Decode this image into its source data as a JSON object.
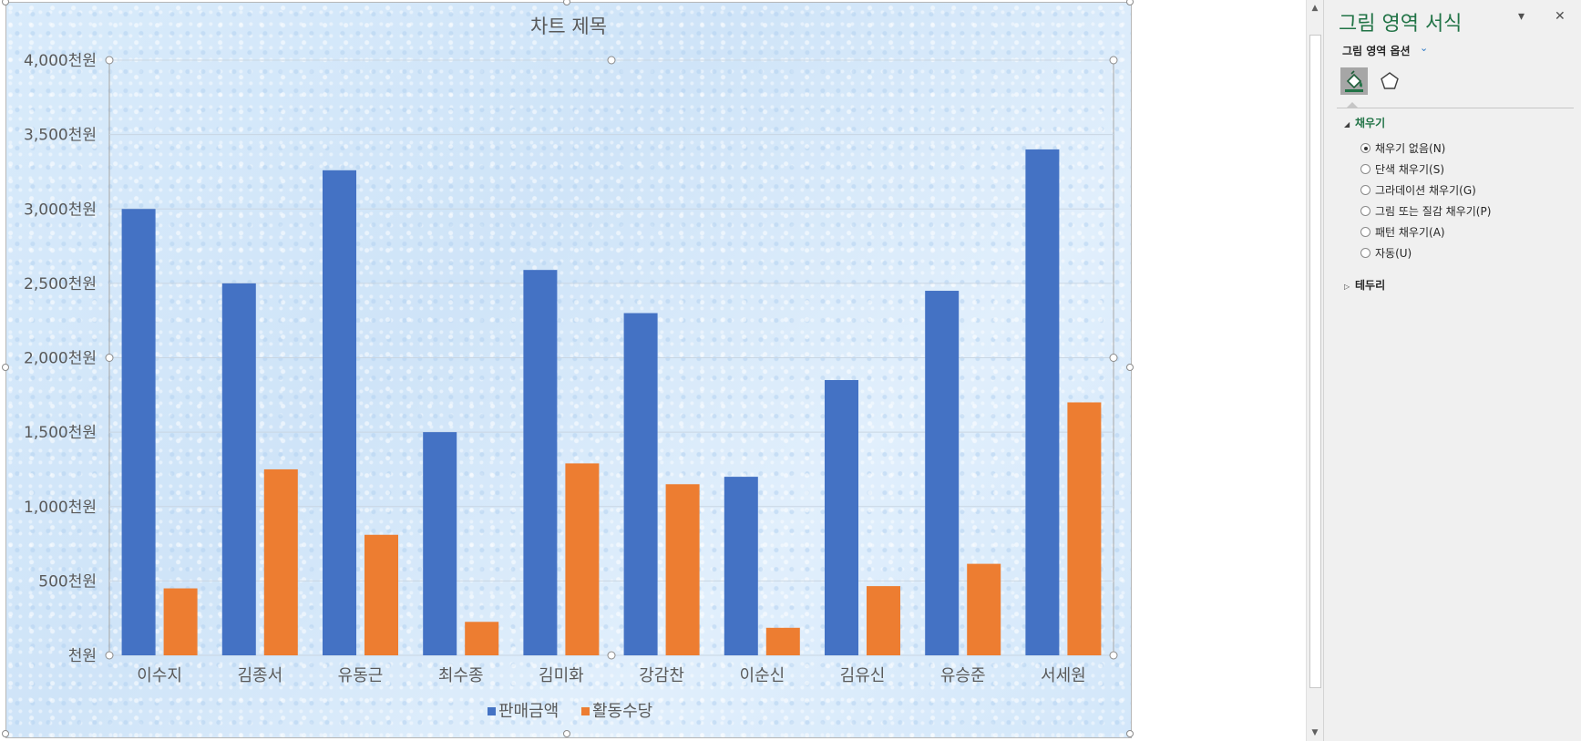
{
  "chart_data": {
    "type": "bar",
    "title": "차트 제목",
    "categories": [
      "이수지",
      "김종서",
      "유동근",
      "최수종",
      "김미화",
      "강감찬",
      "이순신",
      "김유신",
      "유승준",
      "서세원"
    ],
    "series": [
      {
        "name": "판매금액",
        "color": "#4472c4",
        "values": [
          3000,
          2500,
          3260,
          1500,
          2590,
          2300,
          1200,
          1850,
          2450,
          3400
        ]
      },
      {
        "name": "활동수당",
        "color": "#ed7d31",
        "values": [
          450,
          1250,
          810,
          225,
          1290,
          1150,
          185,
          465,
          615,
          1700
        ]
      }
    ],
    "ylim": [
      0,
      4000
    ],
    "yticks": [
      0,
      500,
      1000,
      1500,
      2000,
      2500,
      3000,
      3500,
      4000
    ],
    "ytick_labels": [
      "천원",
      "500천원",
      "1,000천원",
      "1,500천원",
      "2,000천원",
      "2,500천원",
      "3,000천원",
      "3,500천원",
      "4,000천원"
    ],
    "grid": true,
    "legend": "bottom"
  },
  "scrollbar": {
    "up_icon": "scroll-up-arrow",
    "down_icon": "scroll-down-arrow"
  },
  "pane": {
    "title": "그림 영역 서식",
    "options_label": "그림 영역 옵션",
    "tabs": [
      "fill-line-icon",
      "shape-effects-icon"
    ],
    "fill_section": "채우기",
    "fill_options": [
      {
        "label": "채우기 없음(N)",
        "selected": true
      },
      {
        "label": "단색 채우기(S)",
        "selected": false
      },
      {
        "label": "그라데이션 채우기(G)",
        "selected": false
      },
      {
        "label": "그림 또는 질감 채우기(P)",
        "selected": false
      },
      {
        "label": "패턴 채우기(A)",
        "selected": false
      },
      {
        "label": "자동(U)",
        "selected": false
      }
    ],
    "border_section": "테두리",
    "accent_color": "#217346"
  }
}
